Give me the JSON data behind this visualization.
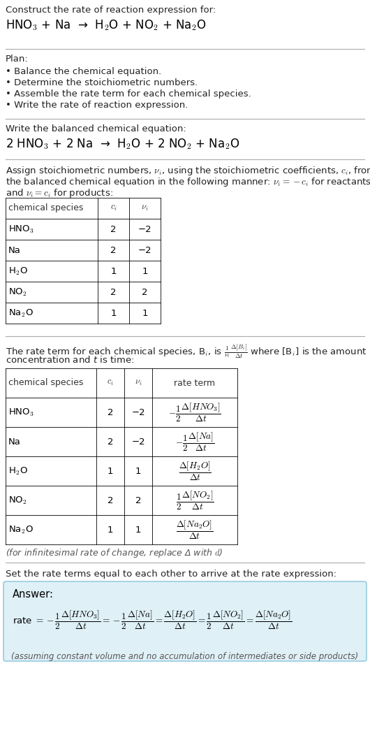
{
  "bg_color": "#ffffff",
  "text_color": "#000000",
  "section_line_color": "#aaaaaa",
  "answer_box_color": "#dff0f7",
  "answer_box_border": "#99cce0",
  "title_text": "Construct the rate of reaction expression for:",
  "reaction_unbalanced": "HNO$_3$ + Na  →  H$_2$O + NO$_2$ + Na$_2$O",
  "plan_header": "Plan:",
  "plan_items": [
    "• Balance the chemical equation.",
    "• Determine the stoichiometric numbers.",
    "• Assemble the rate term for each chemical species.",
    "• Write the rate of reaction expression."
  ],
  "balanced_header": "Write the balanced chemical equation:",
  "reaction_balanced": "2 HNO$_3$ + 2 Na  →  H$_2$O + 2 NO$_2$ + Na$_2$O",
  "stoich_header_1": "Assign stoichiometric numbers, $\\nu_i$, using the stoichiometric coefficients, $c_i$, from",
  "stoich_header_2": "the balanced chemical equation in the following manner: $\\nu_i = -c_i$ for reactants",
  "stoich_header_3": "and $\\nu_i = c_i$ for products:",
  "table1_headers": [
    "chemical species",
    "$c_i$",
    "$\\nu_i$"
  ],
  "table1_data": [
    [
      "HNO$_3$",
      "2",
      "−2"
    ],
    [
      "Na",
      "2",
      "−2"
    ],
    [
      "H$_2$O",
      "1",
      "1"
    ],
    [
      "NO$_2$",
      "2",
      "2"
    ],
    [
      "Na$_2$O",
      "1",
      "1"
    ]
  ],
  "rate_term_header_1": "The rate term for each chemical species, B$_i$, is $\\frac{1}{\\nu_i}\\frac{\\Delta[B_i]}{\\Delta t}$ where [B$_i$] is the amount",
  "rate_term_header_2": "concentration and $t$ is time:",
  "table2_headers": [
    "chemical species",
    "$c_i$",
    "$\\nu_i$",
    "rate term"
  ],
  "table2_data": [
    [
      "HNO$_3$",
      "2",
      "−2",
      "$-\\dfrac{1}{2}\\dfrac{\\Delta[HNO_3]}{\\Delta t}$"
    ],
    [
      "Na",
      "2",
      "−2",
      "$-\\dfrac{1}{2}\\dfrac{\\Delta[Na]}{\\Delta t}$"
    ],
    [
      "H$_2$O",
      "1",
      "1",
      "$\\dfrac{\\Delta[H_2O]}{\\Delta t}$"
    ],
    [
      "NO$_2$",
      "2",
      "2",
      "$\\dfrac{1}{2}\\dfrac{\\Delta[NO_2]}{\\Delta t}$"
    ],
    [
      "Na$_2$O",
      "1",
      "1",
      "$\\dfrac{\\Delta[Na_2O]}{\\Delta t}$"
    ]
  ],
  "infinitesimal_note": "(for infinitesimal rate of change, replace Δ with $d$)",
  "set_rate_header": "Set the rate terms equal to each other to arrive at the rate expression:",
  "answer_label": "Answer:",
  "answer_rate": "rate $= -\\dfrac{1}{2}\\dfrac{\\Delta[HNO_3]}{\\Delta t} = -\\dfrac{1}{2}\\dfrac{\\Delta[Na]}{\\Delta t} = \\dfrac{\\Delta[H_2O]}{\\Delta t} = \\dfrac{1}{2}\\dfrac{\\Delta[NO_2]}{\\Delta t} = \\dfrac{\\Delta[Na_2O]}{\\Delta t}$",
  "answer_note": "(assuming constant volume and no accumulation of intermediates or side products)"
}
